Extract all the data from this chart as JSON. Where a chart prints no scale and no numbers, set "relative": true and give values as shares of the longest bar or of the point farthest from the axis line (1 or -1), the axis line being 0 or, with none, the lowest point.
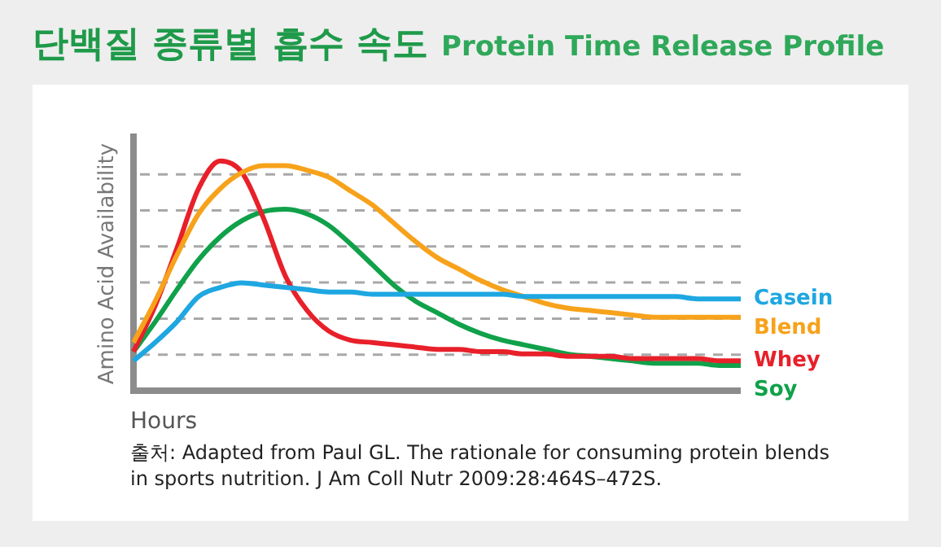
{
  "chart_data": {
    "type": "line",
    "relative": true,
    "title": "단백질 종류별 흡수 속도",
    "subtitle": "Protein Time Release Profile",
    "xlabel": "Hours",
    "ylabel": "Amino Acid Availability",
    "annotations": [
      "출처: Adapted from Paul GL. The rationale for consuming protein blends in sports nutrition. J Am Coll Nutr 2009:28:464S–472S."
    ],
    "grid": "y",
    "legend": false,
    "marker": "none",
    "line_style": "solid",
    "categories": [
      null,
      null,
      null,
      null,
      null,
      null,
      null,
      null,
      null,
      null,
      null,
      null,
      null,
      null,
      null,
      null,
      null,
      null,
      null,
      null,
      null,
      null,
      null,
      null,
      null,
      null,
      null,
      null,
      null
    ],
    "series": [
      {
        "name": "Casein",
        "color": "#1ea7e1",
        "values": [
          0.13,
          0.21,
          0.3,
          0.41,
          0.45,
          0.47,
          0.46,
          0.45,
          0.44,
          0.43,
          0.43,
          0.42,
          0.42,
          0.42,
          0.42,
          0.42,
          0.42,
          0.42,
          0.41,
          0.41,
          0.41,
          0.41,
          0.41,
          0.41,
          0.41,
          0.41,
          0.4,
          0.4,
          0.4
        ]
      },
      {
        "name": "Blend",
        "color": "#f7a21b",
        "values": [
          0.21,
          0.39,
          0.59,
          0.77,
          0.88,
          0.95,
          0.98,
          0.98,
          0.96,
          0.93,
          0.87,
          0.81,
          0.73,
          0.65,
          0.58,
          0.53,
          0.48,
          0.44,
          0.41,
          0.38,
          0.36,
          0.35,
          0.34,
          0.33,
          0.32,
          0.32,
          0.32,
          0.32,
          0.32
        ]
      },
      {
        "name": "Whey",
        "color": "#e8202a",
        "values": [
          0.17,
          0.37,
          0.62,
          0.88,
          1,
          0.95,
          0.75,
          0.5,
          0.35,
          0.26,
          0.22,
          0.21,
          0.2,
          0.19,
          0.18,
          0.18,
          0.17,
          0.17,
          0.16,
          0.16,
          0.15,
          0.15,
          0.15,
          0.14,
          0.14,
          0.14,
          0.14,
          0.13,
          0.13
        ]
      },
      {
        "name": "Soy",
        "color": "#10a14a",
        "values": [
          0.17,
          0.3,
          0.44,
          0.57,
          0.67,
          0.74,
          0.78,
          0.79,
          0.77,
          0.72,
          0.64,
          0.55,
          0.46,
          0.39,
          0.34,
          0.29,
          0.25,
          0.22,
          0.2,
          0.18,
          0.16,
          0.15,
          0.14,
          0.13,
          0.12,
          0.12,
          0.12,
          0.11,
          0.11
        ]
      }
    ]
  }
}
